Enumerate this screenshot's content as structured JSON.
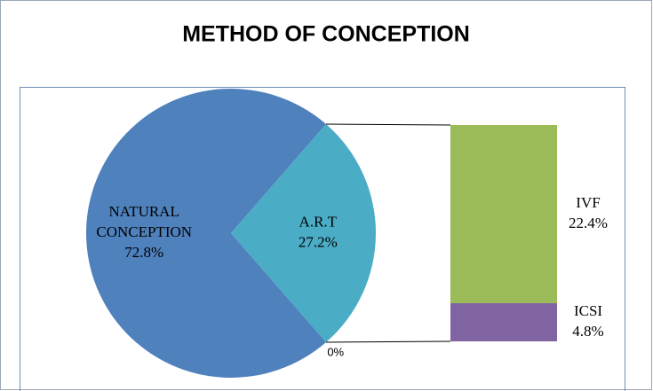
{
  "chart_data": {
    "type": "bar-of-pie",
    "title": "METHOD OF CONCEPTION",
    "categories": [
      "NATURAL CONCEPTION",
      "A.R.T",
      null
    ],
    "values": [
      72.8,
      27.2,
      0
    ],
    "value_labels": [
      "72.8%",
      "27.2%",
      "0%"
    ],
    "colors": [
      "#4f81bd",
      "#4bacc6",
      "#4bacc6"
    ],
    "secondary": {
      "categories": [
        "IVF",
        "ICSI"
      ],
      "values": [
        22.4,
        4.8
      ],
      "value_labels": [
        "22.4%",
        "4.8%"
      ],
      "colors": [
        "#9bbb59",
        "#8064a2"
      ]
    }
  }
}
